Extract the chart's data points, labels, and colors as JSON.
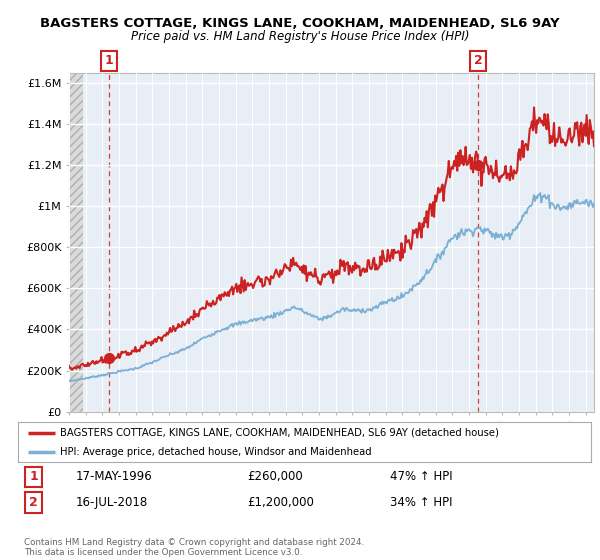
{
  "title": "BAGSTERS COTTAGE, KINGS LANE, COOKHAM, MAIDENHEAD, SL6 9AY",
  "subtitle": "Price paid vs. HM Land Registry's House Price Index (HPI)",
  "red_label": "BAGSTERS COTTAGE, KINGS LANE, COOKHAM, MAIDENHEAD, SL6 9AY (detached house)",
  "blue_label": "HPI: Average price, detached house, Windsor and Maidenhead",
  "point1_date": "17-MAY-1996",
  "point1_price": "£260,000",
  "point1_hpi": "47% ↑ HPI",
  "point2_date": "16-JUL-2018",
  "point2_price": "£1,200,000",
  "point2_hpi": "34% ↑ HPI",
  "footer": "Contains HM Land Registry data © Crown copyright and database right 2024.\nThis data is licensed under the Open Government Licence v3.0.",
  "ylim": [
    0,
    1650000
  ],
  "yticks": [
    0,
    200000,
    400000,
    600000,
    800000,
    1000000,
    1200000,
    1400000,
    1600000
  ],
  "ytick_labels": [
    "£0",
    "£200K",
    "£400K",
    "£600K",
    "£800K",
    "£1M",
    "£1.2M",
    "£1.4M",
    "£1.6M"
  ],
  "red_color": "#cc2222",
  "blue_color": "#7bafd4",
  "point1_x": 1996.38,
  "point1_y": 260000,
  "point2_x": 2018.54,
  "point2_y": 1200000,
  "xmin": 1994.0,
  "xmax": 2025.5,
  "hatch_end": 1994.85
}
